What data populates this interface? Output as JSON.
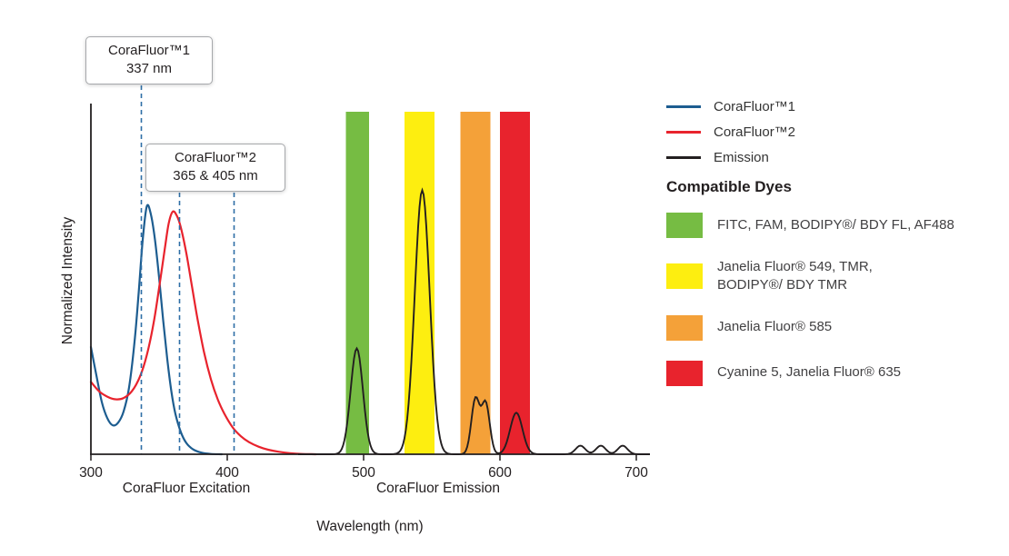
{
  "chart_data": {
    "type": "line",
    "xlabel": "Wavelength (nm)",
    "ylabel": "Normalized Intensity",
    "x_range": [
      300,
      710
    ],
    "x_ticks": [
      300,
      400,
      500,
      600,
      700
    ],
    "x_region_labels": [
      "CoraFluor Excitation",
      "CoraFluor Emission"
    ],
    "grid": false,
    "series": [
      {
        "name": "CoraFluor™1",
        "role": "excitation",
        "color": "#1d5d90",
        "points": [
          [
            300,
            0.4
          ],
          [
            304,
            0.295
          ],
          [
            308,
            0.195
          ],
          [
            312,
            0.135
          ],
          [
            316,
            0.108
          ],
          [
            320,
            0.118
          ],
          [
            324,
            0.16
          ],
          [
            328,
            0.25
          ],
          [
            332,
            0.42
          ],
          [
            335,
            0.6
          ],
          [
            338,
            0.8
          ],
          [
            341,
            0.925
          ],
          [
            344,
            0.895
          ],
          [
            347,
            0.8
          ],
          [
            350,
            0.66
          ],
          [
            353,
            0.5
          ],
          [
            356,
            0.355
          ],
          [
            359,
            0.235
          ],
          [
            362,
            0.15
          ],
          [
            366,
            0.082
          ],
          [
            370,
            0.042
          ],
          [
            375,
            0.018
          ],
          [
            381,
            0.006
          ],
          [
            388,
            0.001
          ],
          [
            396,
            0
          ]
        ]
      },
      {
        "name": "CoraFluor™2",
        "role": "excitation",
        "color": "#e8232d",
        "points": [
          [
            300,
            0.27
          ],
          [
            306,
            0.235
          ],
          [
            312,
            0.215
          ],
          [
            318,
            0.205
          ],
          [
            324,
            0.21
          ],
          [
            330,
            0.235
          ],
          [
            336,
            0.29
          ],
          [
            341,
            0.37
          ],
          [
            346,
            0.49
          ],
          [
            350,
            0.62
          ],
          [
            354,
            0.76
          ],
          [
            357,
            0.86
          ],
          [
            360,
            0.905
          ],
          [
            363,
            0.89
          ],
          [
            366,
            0.845
          ],
          [
            370,
            0.75
          ],
          [
            374,
            0.63
          ],
          [
            378,
            0.51
          ],
          [
            383,
            0.38
          ],
          [
            388,
            0.28
          ],
          [
            393,
            0.205
          ],
          [
            398,
            0.15
          ],
          [
            404,
            0.1
          ],
          [
            410,
            0.067
          ],
          [
            416,
            0.045
          ],
          [
            423,
            0.028
          ],
          [
            430,
            0.017
          ],
          [
            438,
            0.009
          ],
          [
            446,
            0.004
          ],
          [
            455,
            0.001
          ],
          [
            465,
            0
          ]
        ]
      },
      {
        "name": "Emission",
        "role": "emission",
        "color": "#231f20",
        "gaussians": [
          {
            "center": 495,
            "sigma": 4.5,
            "amplitude": 0.395
          },
          {
            "center": 543,
            "sigma": 5.5,
            "amplitude": 0.985
          },
          {
            "center": 582,
            "sigma": 3.0,
            "amplitude": 0.205
          },
          {
            "center": 589.5,
            "sigma": 3.0,
            "amplitude": 0.19
          },
          {
            "center": 612,
            "sigma": 4.5,
            "amplitude": 0.155
          },
          {
            "center": 659,
            "sigma": 3.5,
            "amplitude": 0.032
          },
          {
            "center": 674,
            "sigma": 3.5,
            "amplitude": 0.032
          },
          {
            "center": 690,
            "sigma": 3.5,
            "amplitude": 0.032
          }
        ]
      }
    ],
    "filter_bands": [
      {
        "from": 487,
        "to": 504,
        "color": "#76bc43",
        "dyes": "FITC, FAM, BODIPY®/ BDY FL, AF488"
      },
      {
        "from": 530,
        "to": 552,
        "color": "#fdee10",
        "dyes": "Janelia Fluor® 549, TMR, BODIPY®/ BDY TMR"
      },
      {
        "from": 571,
        "to": 593,
        "color": "#f4a139",
        "dyes": "Janelia Fluor® 585"
      },
      {
        "from": 600,
        "to": 622,
        "color": "#e8232d",
        "dyes": "Cyanine 5, Janelia Fluor® 635"
      }
    ],
    "dashed_markers": {
      "color": "#2e6ea6",
      "groups": [
        {
          "label": "CoraFluor™1 337 nm",
          "wavelengths": [
            337
          ]
        },
        {
          "label": "CoraFluor™2 365 & 405 nm",
          "wavelengths": [
            365,
            405
          ]
        }
      ]
    }
  },
  "annotations": {
    "callout1": {
      "line1": "CoraFluor™1",
      "line2": "337 nm"
    },
    "callout2": {
      "line1": "CoraFluor™2",
      "line2": "365 & 405 nm"
    }
  },
  "legend": {
    "series": [
      {
        "label": "CoraFluor™1",
        "color": "#1d5d90"
      },
      {
        "label": "CoraFluor™2",
        "color": "#e8232d"
      },
      {
        "label": "Emission",
        "color": "#231f20"
      }
    ],
    "dyes_heading": "Compatible Dyes",
    "dyes": [
      {
        "label": "FITC, FAM, BODIPY®/ BDY FL, AF488",
        "color": "#76bc43"
      },
      {
        "label": "Janelia Fluor® 549, TMR,\nBODIPY®/ BDY TMR",
        "color": "#fdee10"
      },
      {
        "label": "Janelia Fluor® 585",
        "color": "#f4a139"
      },
      {
        "label": "Cyanine 5, Janelia Fluor® 635",
        "color": "#e8232d"
      }
    ]
  }
}
